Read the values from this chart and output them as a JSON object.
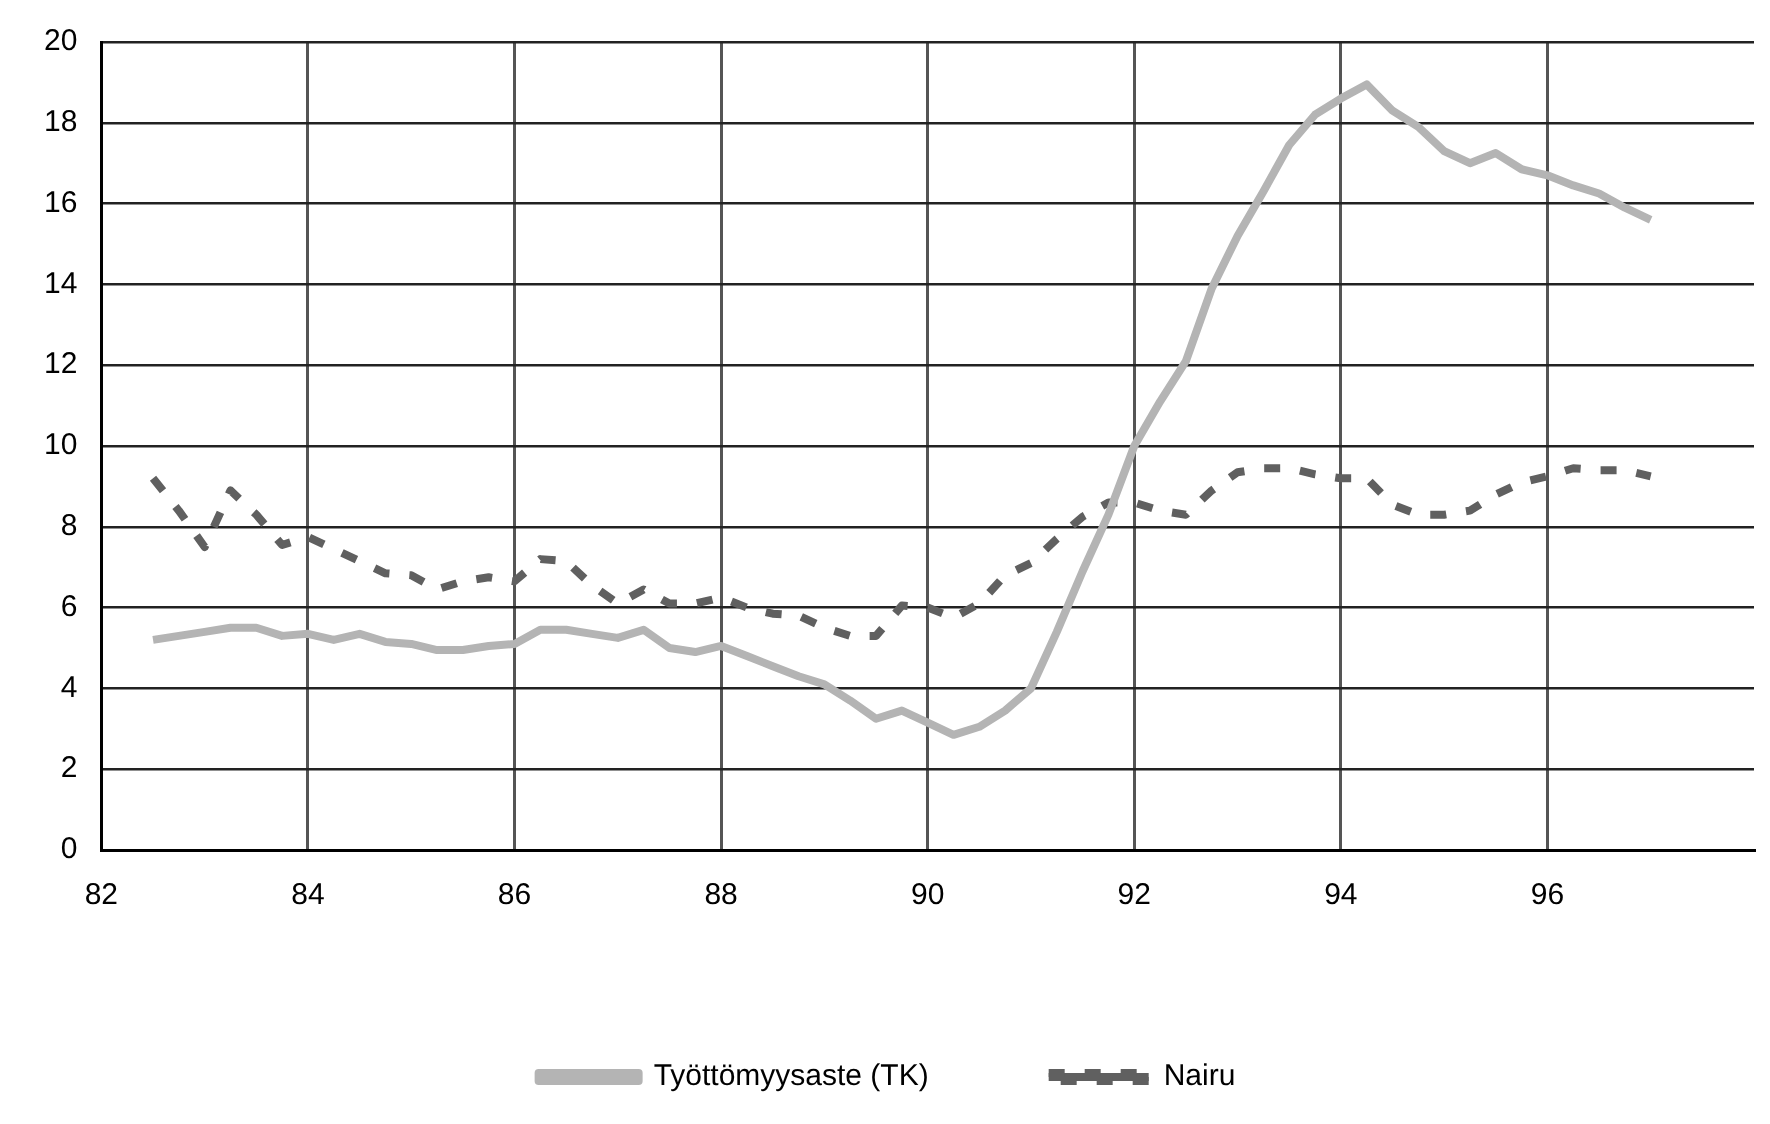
{
  "chart_data": {
    "type": "line",
    "x": [
      82.5,
      82.75,
      83,
      83.25,
      83.5,
      83.75,
      84,
      84.25,
      84.5,
      84.75,
      85,
      85.25,
      85.5,
      85.75,
      86,
      86.25,
      86.5,
      86.75,
      87,
      87.25,
      87.5,
      87.75,
      88,
      88.25,
      88.5,
      88.75,
      89,
      89.25,
      89.5,
      89.75,
      90,
      90.25,
      90.5,
      90.75,
      91,
      91.25,
      91.5,
      91.75,
      92,
      92.25,
      92.5,
      92.75,
      93,
      93.25,
      93.5,
      93.75,
      94,
      94.25,
      94.5,
      94.75,
      95,
      95.25,
      95.5,
      95.75,
      96,
      96.25,
      96.5,
      96.75,
      97
    ],
    "series": [
      {
        "name": "Työttömyysaste (TK)",
        "color": "#b4b4b4",
        "line_style": "solid",
        "values": [
          5.2,
          5.3,
          5.4,
          5.5,
          5.5,
          5.3,
          5.35,
          5.2,
          5.35,
          5.15,
          5.1,
          4.95,
          4.95,
          5.05,
          5.1,
          5.45,
          5.45,
          5.35,
          5.25,
          5.45,
          5.0,
          4.9,
          5.05,
          4.8,
          4.55,
          4.3,
          4.1,
          3.7,
          3.25,
          3.45,
          3.15,
          2.85,
          3.05,
          3.45,
          4.0,
          5.4,
          6.9,
          8.3,
          10.0,
          11.1,
          12.1,
          13.9,
          15.2,
          16.3,
          17.45,
          18.2,
          18.6,
          18.95,
          18.3,
          17.9,
          17.3,
          17.0,
          17.25,
          16.85,
          16.7,
          16.45,
          16.25,
          15.9,
          15.6
        ]
      },
      {
        "name": "Nairu",
        "color": "#606060",
        "line_style": "dashed",
        "values": [
          9.2,
          8.4,
          7.5,
          8.9,
          8.3,
          7.55,
          7.75,
          7.45,
          7.15,
          6.85,
          6.8,
          6.45,
          6.65,
          6.75,
          6.65,
          7.2,
          7.15,
          6.55,
          6.1,
          6.45,
          6.1,
          6.1,
          6.25,
          6.0,
          5.85,
          5.8,
          5.5,
          5.3,
          5.3,
          6.05,
          6.0,
          5.75,
          6.1,
          6.8,
          7.1,
          7.7,
          8.25,
          8.6,
          8.6,
          8.4,
          8.3,
          8.9,
          9.35,
          9.45,
          9.45,
          9.3,
          9.2,
          9.2,
          8.55,
          8.3,
          8.3,
          8.4,
          8.8,
          9.1,
          9.25,
          9.45,
          9.4,
          9.4,
          9.25
        ]
      }
    ],
    "xlim": [
      82,
      98
    ],
    "xticks": [
      82,
      84,
      86,
      88,
      90,
      92,
      94,
      96
    ],
    "ylim": [
      0,
      20
    ],
    "yticks": [
      0,
      2,
      4,
      6,
      8,
      10,
      12,
      14,
      16,
      18,
      20
    ],
    "grid": true,
    "legend": "bottom",
    "marker": "none"
  }
}
